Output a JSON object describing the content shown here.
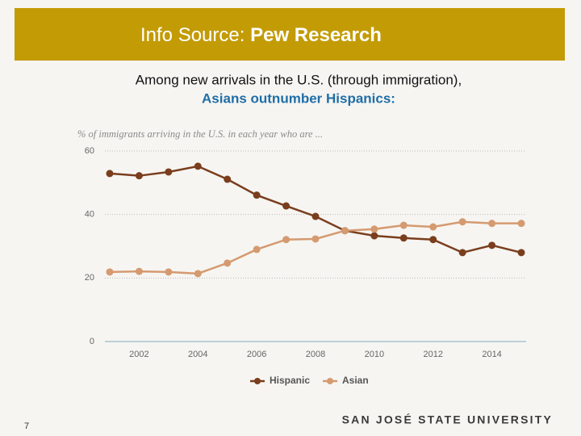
{
  "header": {
    "title_prefix": "Info Source:",
    "title_emphasis": "Pew Research"
  },
  "subtitle": [
    "Among new arrivals in the U.S. (through immigration),",
    "Asians outnumber Hispanics:"
  ],
  "chart_data": {
    "type": "line",
    "title": "% of immigrants arriving in the U.S. in each year who are ...",
    "x": [
      2001,
      2002,
      2003,
      2004,
      2005,
      2006,
      2007,
      2008,
      2009,
      2010,
      2011,
      2012,
      2013,
      2014,
      2015
    ],
    "xlim": [
      2000.8,
      2015.2
    ],
    "xticks": [
      2002,
      2004,
      2006,
      2008,
      2010,
      2012,
      2014
    ],
    "ylim": [
      0,
      60
    ],
    "yticks": [
      0,
      20,
      40,
      60
    ],
    "grid": true,
    "legend": "bottom",
    "series": [
      {
        "name": "Hispanic",
        "color": "#7a3e1d",
        "values": [
          52.9,
          52.2,
          53.4,
          55.2,
          51.1,
          46.1,
          42.7,
          39.4,
          34.9,
          33.3,
          32.6,
          32.1,
          28.0,
          30.3,
          28.0
        ]
      },
      {
        "name": "Asian",
        "color": "#d59a70",
        "values": [
          21.9,
          22.1,
          21.9,
          21.4,
          24.7,
          29.0,
          32.1,
          32.3,
          34.9,
          35.4,
          36.6,
          36.1,
          37.7,
          37.2,
          37.2
        ]
      }
    ]
  },
  "footer": {
    "page_number": 7,
    "university": "SAN JOSÉ STATE UNIVERSITY"
  }
}
